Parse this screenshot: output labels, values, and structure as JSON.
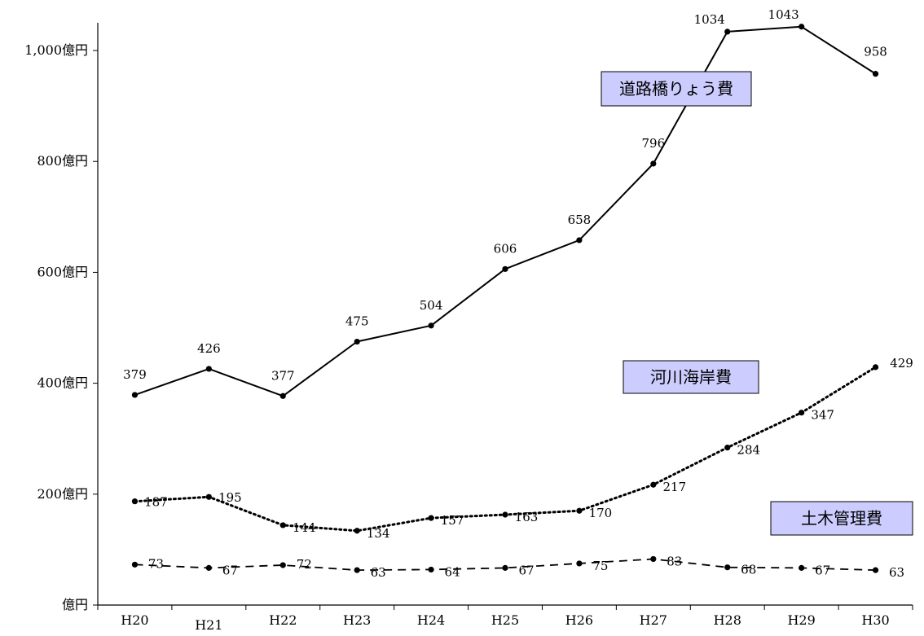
{
  "chart_data": {
    "type": "line",
    "categories": [
      "H20",
      "H21",
      "H22",
      "H23",
      "H24",
      "H25",
      "H26",
      "H27",
      "H28",
      "H29",
      "H30"
    ],
    "series": [
      {
        "name": "道路橋りょう費",
        "values": [
          379,
          426,
          377,
          475,
          504,
          606,
          658,
          796,
          1034,
          1043,
          958
        ],
        "line_style": "solid"
      },
      {
        "name": "河川海岸費",
        "values": [
          187,
          195,
          144,
          134,
          157,
          163,
          170,
          217,
          284,
          347,
          429
        ],
        "line_style": "dotted"
      },
      {
        "name": "土木管理費",
        "values": [
          73,
          67,
          72,
          63,
          64,
          67,
          75,
          83,
          68,
          67,
          63
        ],
        "line_style": "dashed"
      }
    ],
    "y_ticks": [
      {
        "value": 0,
        "label": "億円"
      },
      {
        "value": 200,
        "label": "200億円"
      },
      {
        "value": 400,
        "label": "400億円"
      },
      {
        "value": 600,
        "label": "600億円"
      },
      {
        "value": 800,
        "label": "800億円"
      },
      {
        "value": 1000,
        "label": "1,000億円"
      }
    ],
    "ylim": [
      0,
      1050
    ],
    "grid": false,
    "legend_style": "boxed labels beside each series",
    "colors": {
      "line": "#000000",
      "legend_fill": "#ccccff",
      "legend_border": "#000000"
    }
  }
}
